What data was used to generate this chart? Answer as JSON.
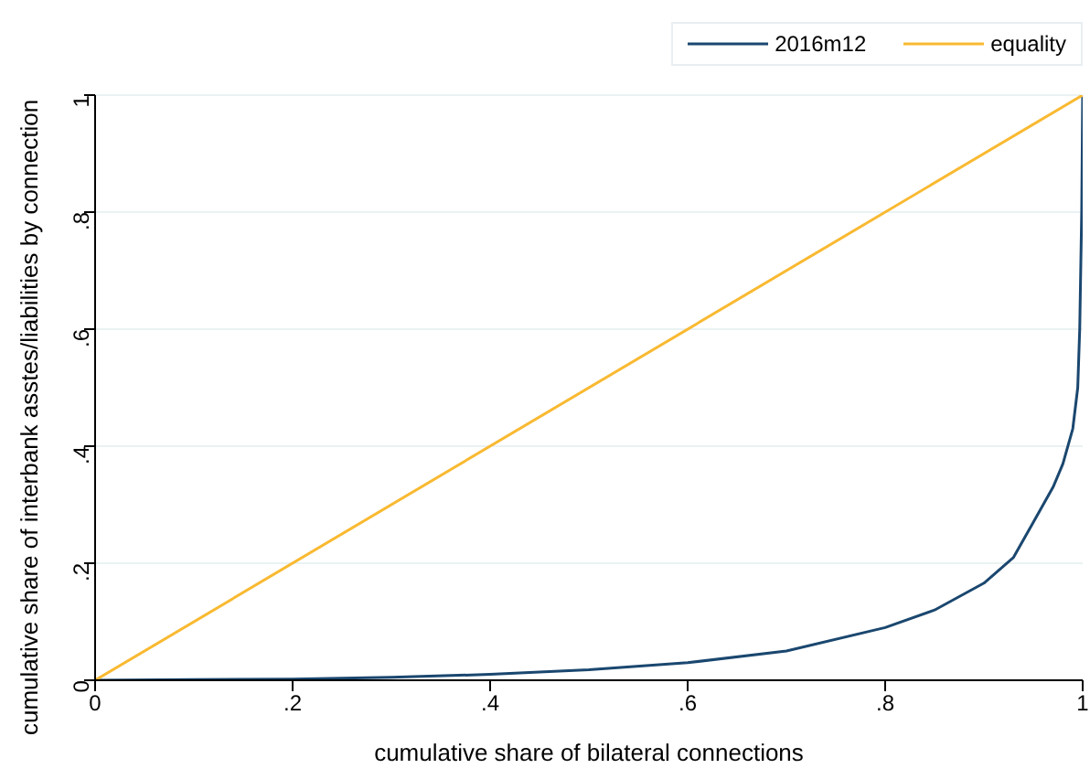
{
  "chart_data": {
    "type": "line",
    "xlabel": "cumulative share of bilateral connections",
    "ylabel": "cumulative share of interbank asstes/liabilities by connection",
    "series": [
      {
        "name": "2016m12",
        "color": "#1a476f",
        "x": [
          0,
          0.1,
          0.2,
          0.3,
          0.4,
          0.5,
          0.6,
          0.7,
          0.8,
          0.85,
          0.9,
          0.93,
          0.95,
          0.97,
          0.98,
          0.99,
          0.995,
          0.997,
          0.999,
          1
        ],
        "values": [
          0,
          0.001,
          0.002,
          0.005,
          0.01,
          0.018,
          0.03,
          0.05,
          0.09,
          0.12,
          0.166,
          0.21,
          0.27,
          0.33,
          0.37,
          0.43,
          0.5,
          0.6,
          0.8,
          1
        ]
      },
      {
        "name": "equality",
        "color": "#f9b931",
        "x": [
          0,
          1
        ],
        "values": [
          0,
          1
        ]
      }
    ],
    "xlim": [
      0,
      1
    ],
    "ylim": [
      0,
      1
    ],
    "xticks": [
      {
        "value": 0,
        "label": "0"
      },
      {
        "value": 0.2,
        "label": ".2"
      },
      {
        "value": 0.4,
        "label": ".4"
      },
      {
        "value": 0.6,
        "label": ".6"
      },
      {
        "value": 0.8,
        "label": ".8"
      },
      {
        "value": 1,
        "label": "1"
      }
    ],
    "yticks": [
      {
        "value": 0,
        "label": "0"
      },
      {
        "value": 0.2,
        "label": ".2"
      },
      {
        "value": 0.4,
        "label": ".4"
      },
      {
        "value": 0.6,
        "label": ".6"
      },
      {
        "value": 0.8,
        "label": ".8"
      },
      {
        "value": 1,
        "label": "1"
      }
    ],
    "grid": "y",
    "legend": "top right",
    "marker": "none",
    "line_style": "solid"
  }
}
